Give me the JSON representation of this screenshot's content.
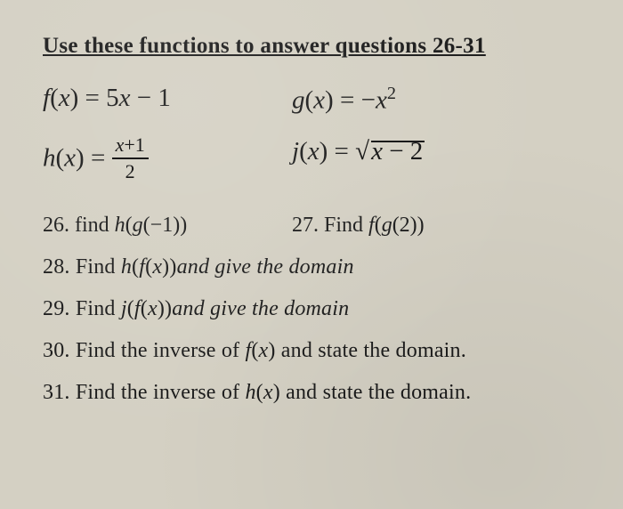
{
  "background_color": "#d4d0c3",
  "text_color": "#1a1a1a",
  "font_family": "Times New Roman",
  "header": {
    "text": "Use these functions to answer questions 26-31",
    "fontsize": 25,
    "bold": true,
    "underline": true
  },
  "functions": {
    "f": {
      "label": "f",
      "var": "x",
      "eq": "= 5",
      "term2": " − 1",
      "full_plain": "f(x) = 5x − 1"
    },
    "g": {
      "label": "g",
      "var": "x",
      "eq": "= −",
      "exp": "2",
      "full_plain": "g(x) = −x²"
    },
    "h": {
      "label": "h",
      "var": "x",
      "eq": "= ",
      "frac_num_a": "x",
      "frac_num_b": "+1",
      "frac_den": "2",
      "full_plain": "h(x) = (x+1)/2"
    },
    "j": {
      "label": "j",
      "var": "x",
      "eq": "= ",
      "sqrt_a": "x",
      "sqrt_b": " − 2",
      "full_plain": "j(x) = √(x − 2)"
    }
  },
  "questions": {
    "q26": {
      "num": "26. ",
      "verb": "find ",
      "fn": "h",
      "open": "(",
      "inner_fn": "g",
      "inner": "(−1))"
    },
    "q27": {
      "num": "27. ",
      "verb": "Find ",
      "fn": "f",
      "open": "(",
      "inner_fn": "g",
      "inner": "(2))"
    },
    "q28": {
      "num": "28. ",
      "verb": "Find ",
      "fn1": "h",
      "p1": "(",
      "fn2": "f",
      "p2": "(",
      "var": "x",
      "p3": "))",
      "tail": "and give the domain"
    },
    "q29": {
      "num": "29. ",
      "verb": "Find ",
      "fn1": "j",
      "p1": "(",
      "fn2": "f",
      "p2": "(",
      "var": "x",
      "p3": "))",
      "tail": "and give the domain"
    },
    "q30": {
      "num": "30. ",
      "text_a": "Find the inverse of ",
      "fn": "f",
      "p1": "(",
      "var": "x",
      "p2": ") ",
      "text_b": "and state the domain."
    },
    "q31": {
      "num": "31. ",
      "text_a": "Find the inverse of ",
      "fn": "h",
      "p1": "(",
      "var": "x",
      "p2": ") ",
      "text_b": "and state the domain."
    }
  }
}
